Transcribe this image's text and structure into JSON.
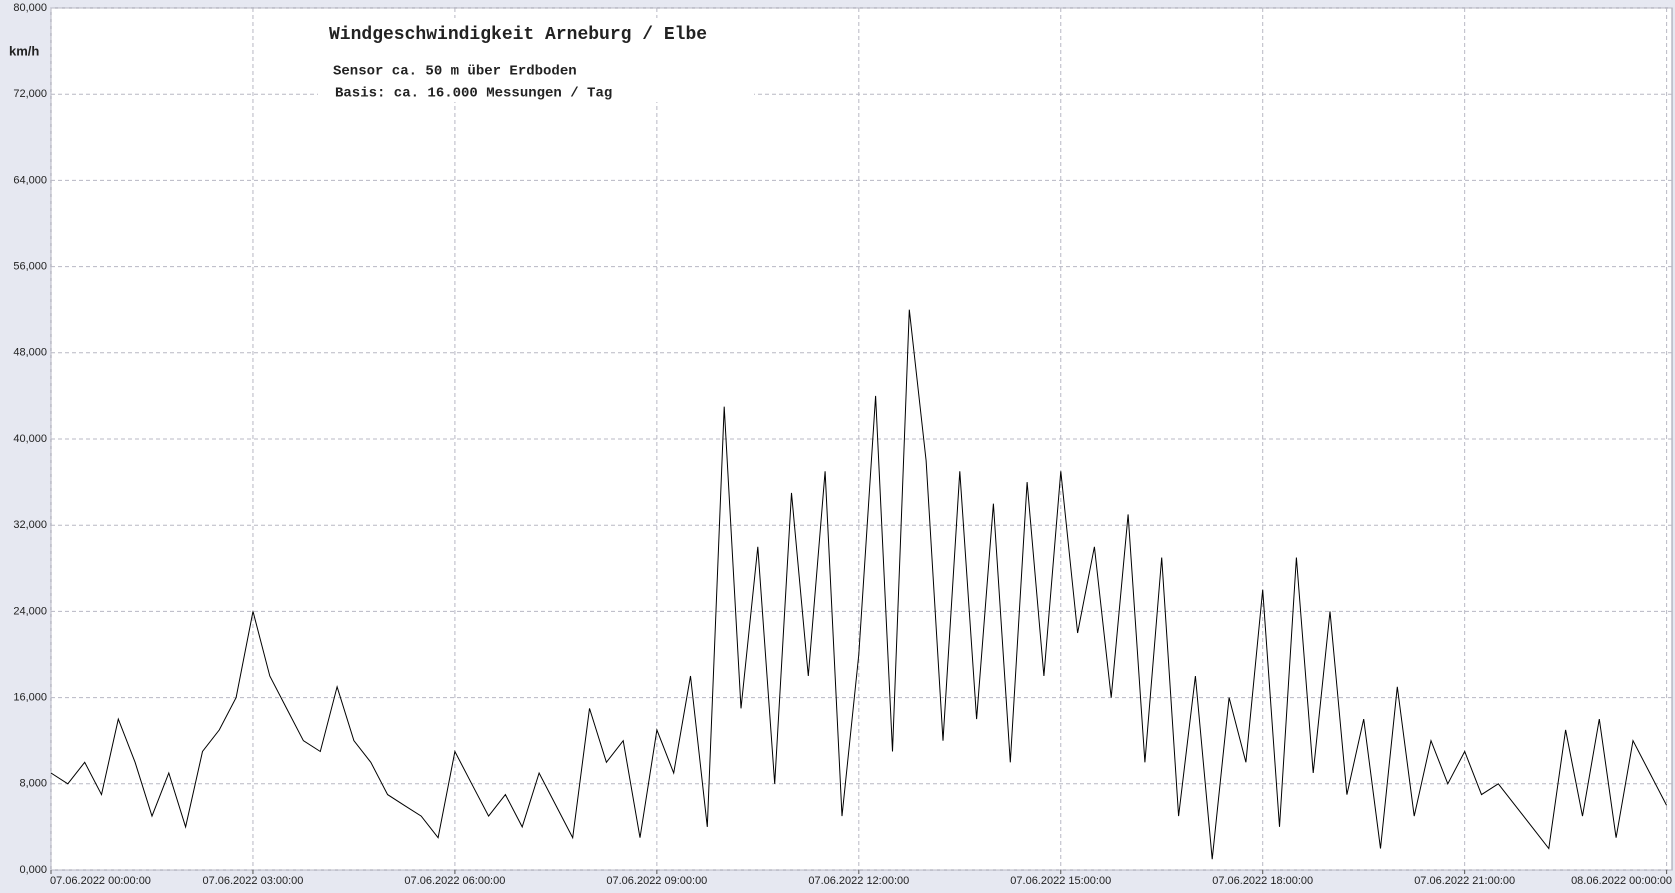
{
  "chart_data": {
    "type": "line",
    "title": "Windgeschwindigkeit  Arneburg / Elbe",
    "subtitle_lines": [
      "Sensor ca. 50 m über Erdboden",
      "Basis: ca. 16.000 Messungen / Tag"
    ],
    "y_label": "km/h",
    "x": [
      0,
      0.25,
      0.5,
      0.75,
      1,
      1.25,
      1.5,
      1.75,
      2,
      2.25,
      2.5,
      2.75,
      3,
      3.25,
      3.5,
      3.75,
      4,
      4.25,
      4.5,
      4.75,
      5,
      5.25,
      5.5,
      5.75,
      6,
      6.25,
      6.5,
      6.75,
      7,
      7.25,
      7.5,
      7.75,
      8,
      8.25,
      8.5,
      8.75,
      9,
      9.25,
      9.5,
      9.75,
      10,
      10.25,
      10.5,
      10.75,
      11,
      11.25,
      11.5,
      11.75,
      12,
      12.25,
      12.5,
      12.75,
      13,
      13.25,
      13.5,
      13.75,
      14,
      14.25,
      14.5,
      14.75,
      15,
      15.25,
      15.5,
      15.75,
      16,
      16.25,
      16.5,
      16.75,
      17,
      17.25,
      17.5,
      17.75,
      18,
      18.25,
      18.5,
      18.75,
      19,
      19.25,
      19.5,
      19.75,
      20,
      20.25,
      20.5,
      20.75,
      21,
      21.25,
      21.5,
      21.75,
      22,
      22.25,
      22.5,
      22.75,
      23,
      23.25,
      23.5,
      23.75,
      24
    ],
    "series": [
      {
        "name": "Windgeschwindigkeit",
        "color": "#000000",
        "values": [
          9,
          8,
          10,
          7,
          14,
          10,
          5,
          9,
          4,
          11,
          13,
          16,
          24,
          18,
          15,
          12,
          11,
          17,
          12,
          10,
          7,
          6,
          5,
          3,
          11,
          8,
          5,
          7,
          4,
          9,
          6,
          3,
          15,
          10,
          12,
          3,
          13,
          9,
          18,
          4,
          43,
          15,
          30,
          8,
          35,
          18,
          37,
          5,
          20,
          44,
          11,
          52,
          38,
          12,
          37,
          14,
          34,
          10,
          36,
          18,
          37,
          22,
          30,
          16,
          33,
          10,
          29,
          5,
          18,
          1,
          16,
          10,
          26,
          4,
          29,
          9,
          24,
          7,
          14,
          2,
          17,
          5,
          12,
          8,
          11,
          7,
          8,
          6,
          4,
          2,
          13,
          5,
          14,
          3,
          12,
          9,
          6
        ]
      }
    ],
    "xlim": [
      0,
      24.08
    ],
    "xticks": [
      {
        "value": 0,
        "label": "07.06.2022  00:00:00"
      },
      {
        "value": 3,
        "label": "07.06.2022  03:00:00"
      },
      {
        "value": 6,
        "label": "07.06.2022  06:00:00"
      },
      {
        "value": 9,
        "label": "07.06.2022  09:00:00"
      },
      {
        "value": 12,
        "label": "07.06.2022  12:00:00"
      },
      {
        "value": 15,
        "label": "07.06.2022  15:00:00"
      },
      {
        "value": 18,
        "label": "07.06.2022  18:00:00"
      },
      {
        "value": 21,
        "label": "07.06.2022  21:00:00"
      },
      {
        "value": 24,
        "label": "08.06.2022  00:00:00"
      }
    ],
    "ylim": [
      0,
      80
    ],
    "yticks": [
      {
        "value": 0,
        "label": "0,000"
      },
      {
        "value": 8,
        "label": "8,000"
      },
      {
        "value": 16,
        "label": "16,000"
      },
      {
        "value": 24,
        "label": "24,000"
      },
      {
        "value": 32,
        "label": "32,000"
      },
      {
        "value": 40,
        "label": "40,000"
      },
      {
        "value": 48,
        "label": "48,000"
      },
      {
        "value": 56,
        "label": "56,000"
      },
      {
        "value": 64,
        "label": "64,000"
      },
      {
        "value": 72,
        "label": "72,000"
      },
      {
        "value": 80,
        "label": "80,000"
      }
    ],
    "grid": true
  }
}
